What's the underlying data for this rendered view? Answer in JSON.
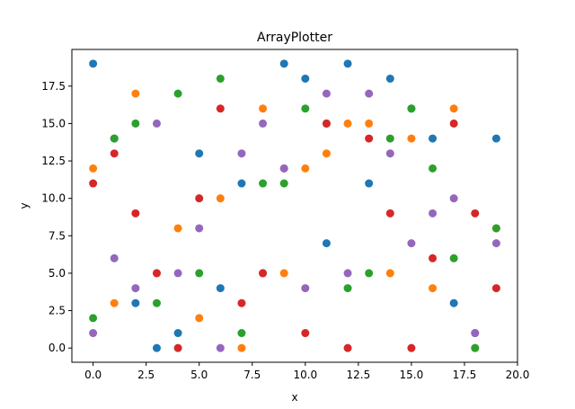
{
  "chart_data": {
    "type": "scatter",
    "title": "ArrayPlotter",
    "xlabel": "x",
    "ylabel": "y",
    "xlim": [
      -1,
      20
    ],
    "ylim": [
      -0.95,
      19.95
    ],
    "x_ticks": [
      0,
      2.5,
      5,
      7.5,
      10,
      12.5,
      15,
      17.5,
      20
    ],
    "x_tick_labels": [
      "0.0",
      "2.5",
      "5.0",
      "7.5",
      "10.0",
      "12.5",
      "15.0",
      "17.5",
      "20.0"
    ],
    "y_ticks": [
      0,
      2.5,
      5,
      7.5,
      10,
      12.5,
      15,
      17.5
    ],
    "y_tick_labels": [
      "0.0",
      "2.5",
      "5.0",
      "7.5",
      "10.0",
      "12.5",
      "15.0",
      "17.5"
    ],
    "grid": false,
    "legend": "none",
    "x": [
      0,
      1,
      2,
      3,
      4,
      5,
      6,
      7,
      8,
      9,
      10,
      11,
      12,
      13,
      14,
      15,
      16,
      17,
      18,
      19
    ],
    "series": [
      {
        "color": "#1f77b4",
        "values": [
          19,
          14,
          3,
          0,
          1,
          13,
          4,
          11,
          5,
          19,
          18,
          7,
          19,
          11,
          18,
          16,
          14,
          3,
          1,
          14
        ]
      },
      {
        "color": "#ff7f0e",
        "values": [
          12,
          3,
          17,
          5,
          8,
          2,
          10,
          0,
          16,
          5,
          12,
          13,
          15,
          15,
          5,
          14,
          4,
          16,
          0,
          8
        ]
      },
      {
        "color": "#2ca02c",
        "values": [
          2,
          14,
          15,
          3,
          17,
          5,
          18,
          1,
          11,
          11,
          16,
          15,
          4,
          5,
          14,
          16,
          12,
          6,
          0,
          8
        ]
      },
      {
        "color": "#d62728",
        "values": [
          11,
          13,
          9,
          5,
          0,
          10,
          16,
          3,
          5,
          12,
          1,
          15,
          0,
          14,
          9,
          0,
          6,
          15,
          9,
          4
        ]
      },
      {
        "color": "#9467bd",
        "values": [
          1,
          6,
          4,
          15,
          5,
          8,
          0,
          13,
          15,
          12,
          4,
          17,
          5,
          17,
          13,
          7,
          9,
          10,
          1,
          7
        ]
      }
    ]
  }
}
